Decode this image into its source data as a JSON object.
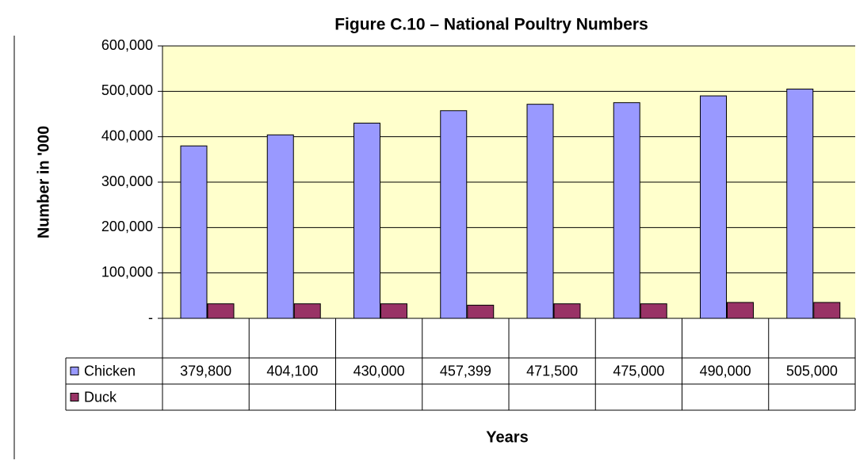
{
  "chart_data": {
    "type": "bar",
    "title": "Figure C.10 – National Poultry Numbers",
    "y_label": "Number in '000",
    "x_label": "Years",
    "categories": [
      null,
      null,
      null,
      null,
      null,
      null,
      null,
      null
    ],
    "series": [
      {
        "name": "Chicken",
        "color": "#9999ff",
        "values": [
          379800,
          404100,
          430000,
          457399,
          471500,
          475000,
          490000,
          505000
        ],
        "value_labels": [
          "379,800",
          "404,100",
          "430,000",
          "457,399",
          "471,500",
          "475,000",
          "490,000",
          "505,000"
        ]
      },
      {
        "name": "Duck",
        "color": "#993366",
        "values": [
          32000,
          32000,
          32000,
          29000,
          32000,
          32000,
          35000,
          35000
        ]
      }
    ],
    "ylim": [
      0,
      600000
    ],
    "yticks": [
      {
        "value": 0,
        "label": "-"
      },
      {
        "value": 100000,
        "label": "100,000"
      },
      {
        "value": 200000,
        "label": "200,000"
      },
      {
        "value": 300000,
        "label": "300,000"
      },
      {
        "value": 400000,
        "label": "400,000"
      },
      {
        "value": 500000,
        "label": "500,000"
      },
      {
        "value": 600000,
        "label": "600,000"
      }
    ],
    "grid": true,
    "plot_background": "#ffffcc"
  }
}
